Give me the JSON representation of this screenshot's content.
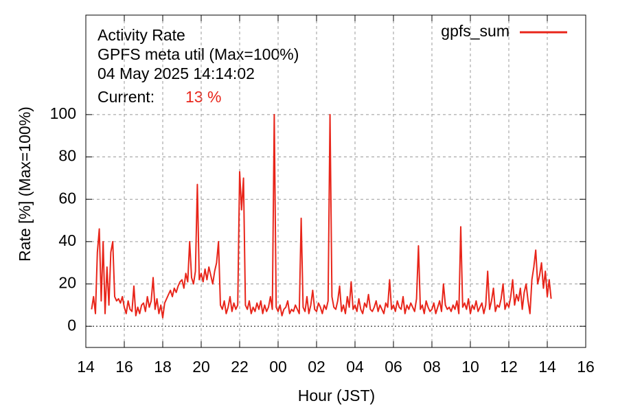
{
  "chart_data": {
    "type": "line",
    "title": "Activity Rate",
    "subtitle": "GPFS meta util (Max=100%)",
    "timestamp": "04 May 2025 14:14:02",
    "current_label": "Current:",
    "current_value": 13,
    "current_value_label": "13 %",
    "xlabel": "Hour (JST)",
    "ylabel": "Rate [%]  (Max=100%)",
    "xlim": [
      14,
      40
    ],
    "xticks": [
      14,
      16,
      18,
      20,
      22,
      {
        "value": 24,
        "label": "00"
      },
      {
        "value": 26,
        "label": "02"
      },
      {
        "value": 28,
        "label": "04"
      },
      {
        "value": 30,
        "label": "06"
      },
      {
        "value": 32,
        "label": "08"
      },
      {
        "value": 34,
        "label": "10"
      },
      {
        "value": 36,
        "label": "12"
      },
      {
        "value": 38,
        "label": "14"
      },
      {
        "value": 40,
        "label": "16"
      }
    ],
    "ylim": [
      -10,
      147
    ],
    "yticks": [
      0,
      20,
      40,
      60,
      80,
      100
    ],
    "grid": true,
    "legend": "top-right",
    "x": [
      14.3,
      14.4,
      14.5,
      14.6,
      14.7,
      14.8,
      14.9,
      15.0,
      15.1,
      15.2,
      15.3,
      15.4,
      15.5,
      15.6,
      15.7,
      15.8,
      15.9,
      16.0,
      16.1,
      16.2,
      16.3,
      16.4,
      16.5,
      16.6,
      16.7,
      16.8,
      16.9,
      17.0,
      17.1,
      17.2,
      17.3,
      17.4,
      17.5,
      17.6,
      17.7,
      17.8,
      17.9,
      18.0,
      18.1,
      18.2,
      18.3,
      18.4,
      18.5,
      18.6,
      18.7,
      18.8,
      18.9,
      19.0,
      19.1,
      19.2,
      19.3,
      19.4,
      19.5,
      19.6,
      19.7,
      19.8,
      19.9,
      20.0,
      20.1,
      20.2,
      20.3,
      20.4,
      20.5,
      20.6,
      20.7,
      20.8,
      20.9,
      21.0,
      21.1,
      21.2,
      21.3,
      21.4,
      21.5,
      21.6,
      21.7,
      21.8,
      21.9,
      22.0,
      22.1,
      22.2,
      22.3,
      22.4,
      22.5,
      22.6,
      22.7,
      22.8,
      22.9,
      23.0,
      23.1,
      23.2,
      23.3,
      23.4,
      23.5,
      23.6,
      23.7,
      23.8,
      23.9,
      24.0,
      24.1,
      24.2,
      24.3,
      24.4,
      24.5,
      24.6,
      24.7,
      24.8,
      24.9,
      25.0,
      25.1,
      25.2,
      25.3,
      25.4,
      25.5,
      25.6,
      25.7,
      25.8,
      25.9,
      26.0,
      26.1,
      26.2,
      26.3,
      26.4,
      26.5,
      26.6,
      26.7,
      26.8,
      26.9,
      27.0,
      27.1,
      27.2,
      27.3,
      27.4,
      27.5,
      27.6,
      27.7,
      27.8,
      27.9,
      28.0,
      28.1,
      28.2,
      28.3,
      28.4,
      28.5,
      28.6,
      28.7,
      28.8,
      28.9,
      29.0,
      29.1,
      29.2,
      29.3,
      29.4,
      29.5,
      29.6,
      29.7,
      29.8,
      29.9,
      30.0,
      30.1,
      30.2,
      30.3,
      30.4,
      30.5,
      30.6,
      30.7,
      30.8,
      30.9,
      31.0,
      31.1,
      31.2,
      31.3,
      31.4,
      31.5,
      31.6,
      31.7,
      31.8,
      31.9,
      32.0,
      32.1,
      32.2,
      32.3,
      32.4,
      32.5,
      32.6,
      32.7,
      32.8,
      32.9,
      33.0,
      33.1,
      33.2,
      33.3,
      33.4,
      33.5,
      33.6,
      33.7,
      33.8,
      33.9,
      34.0,
      34.1,
      34.2,
      34.3,
      34.4,
      34.5,
      34.6,
      34.7,
      34.8,
      34.9,
      35.0,
      35.1,
      35.2,
      35.3,
      35.4,
      35.5,
      35.6,
      35.7,
      35.8,
      35.9,
      36.0,
      36.1,
      36.2,
      36.3,
      36.4,
      36.5,
      36.6,
      36.7,
      36.8,
      36.9,
      37.0,
      37.1,
      37.2,
      37.3,
      37.4,
      37.5,
      37.6,
      37.7,
      37.8,
      37.9,
      38.0,
      38.1,
      38.2
    ],
    "series": [
      {
        "name": "gpfs_sum",
        "color": "#e8251a",
        "values": [
          8,
          14,
          6,
          35,
          46,
          12,
          40,
          6,
          28,
          10,
          35,
          40,
          14,
          12,
          13,
          11,
          14,
          9,
          6,
          12,
          8,
          7,
          19,
          5,
          9,
          6,
          10,
          11,
          7,
          14,
          9,
          12,
          23,
          8,
          13,
          6,
          10,
          4,
          11,
          13,
          15,
          17,
          14,
          18,
          16,
          19,
          21,
          22,
          18,
          25,
          21,
          40,
          23,
          20,
          26,
          67,
          22,
          25,
          21,
          27,
          22,
          28,
          24,
          20,
          26,
          30,
          40,
          10,
          8,
          12,
          6,
          9,
          14,
          7,
          11,
          8,
          10,
          73,
          55,
          70,
          10,
          8,
          12,
          6,
          9,
          7,
          11,
          8,
          12,
          6,
          10,
          7,
          9,
          14,
          8,
          100,
          9,
          7,
          10,
          5,
          8,
          9,
          12,
          6,
          8,
          7,
          10,
          8,
          6,
          51,
          9,
          7,
          14,
          6,
          10,
          17,
          8,
          7,
          11,
          9,
          6,
          10,
          8,
          12,
          100,
          14,
          9,
          8,
          12,
          19,
          7,
          10,
          6,
          14,
          9,
          21,
          8,
          10,
          7,
          13,
          8,
          6,
          11,
          9,
          15,
          8,
          7,
          9,
          12,
          7,
          10,
          8,
          6,
          11,
          9,
          22,
          8,
          10,
          7,
          12,
          9,
          8,
          14,
          6,
          10,
          8,
          11,
          9,
          7,
          13,
          38,
          8,
          10,
          6,
          12,
          9,
          7,
          8,
          11,
          6,
          9,
          12,
          7,
          20,
          10,
          8,
          9,
          7,
          10,
          8,
          12,
          6,
          47,
          9,
          11,
          8,
          13,
          6,
          10,
          8,
          12,
          7,
          9,
          11,
          6,
          10,
          26,
          8,
          12,
          18,
          7,
          10,
          9,
          13,
          20,
          8,
          11,
          9,
          14,
          22,
          10,
          15,
          12,
          18,
          8,
          16,
          20,
          12,
          6,
          22,
          28,
          36,
          20,
          24,
          30,
          18,
          26,
          14,
          22,
          13
        ]
      }
    ]
  }
}
